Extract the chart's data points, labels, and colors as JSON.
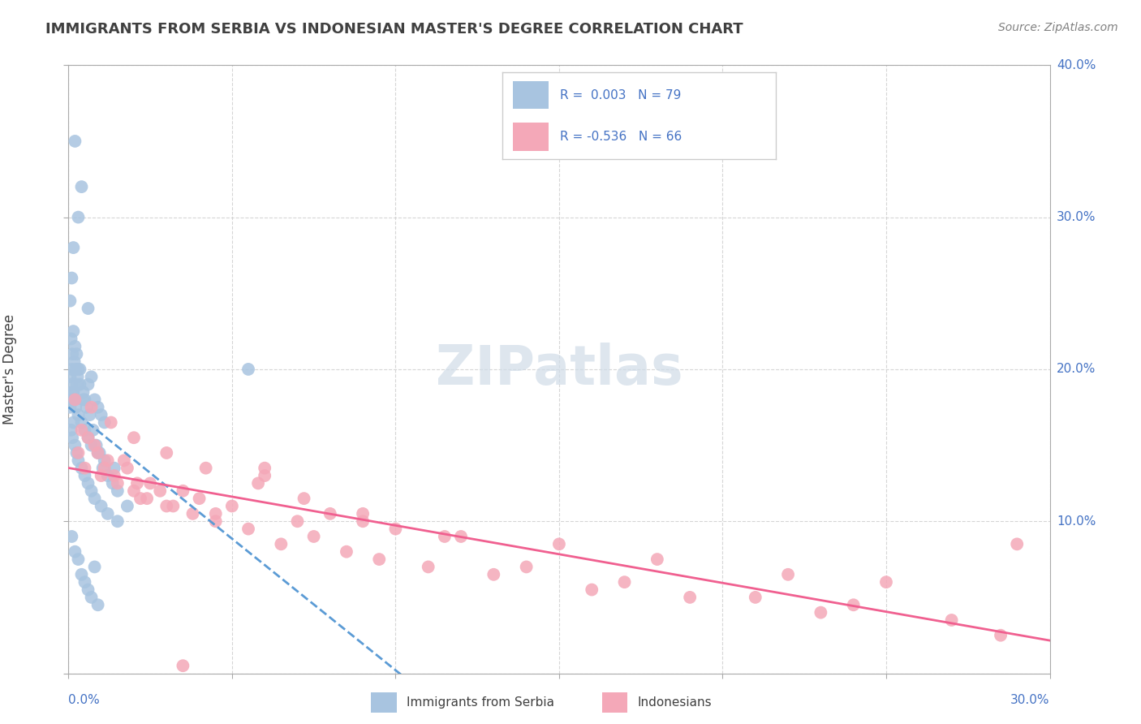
{
  "title": "IMMIGRANTS FROM SERBIA VS INDONESIAN MASTER'S DEGREE CORRELATION CHART",
  "source_text": "Source: ZipAtlas.com",
  "ylabel_label": "Master's Degree",
  "xlim": [
    0.0,
    30.0
  ],
  "ylim": [
    0.0,
    40.0
  ],
  "serbia_R": 0.003,
  "serbia_N": 79,
  "indonesia_R": -0.536,
  "indonesia_N": 66,
  "serbia_color": "#a8c4e0",
  "indonesia_color": "#f4a8b8",
  "serbia_line_color": "#5b9bd5",
  "indonesia_line_color": "#f06090",
  "background_color": "#ffffff",
  "grid_color": "#cccccc",
  "title_color": "#404040",
  "legend_text_color": "#4472c4",
  "watermark_color": "#d0dce8",
  "serbia_scatter_x": [
    0.2,
    0.4,
    0.15,
    0.3,
    0.1,
    0.05,
    0.08,
    0.12,
    0.18,
    0.22,
    0.28,
    0.35,
    0.45,
    0.5,
    0.6,
    0.7,
    0.8,
    0.9,
    1.0,
    1.1,
    0.6,
    0.3,
    0.25,
    0.15,
    0.1,
    0.05,
    0.08,
    0.12,
    0.15,
    0.2,
    0.25,
    0.3,
    0.4,
    0.5,
    0.6,
    0.7,
    0.8,
    1.0,
    1.2,
    1.5,
    0.2,
    0.1,
    0.05,
    0.08,
    0.12,
    0.18,
    0.22,
    0.3,
    0.4,
    0.5,
    0.6,
    0.7,
    0.9,
    1.1,
    1.4,
    0.15,
    0.25,
    0.35,
    0.45,
    0.55,
    0.65,
    0.75,
    0.85,
    0.95,
    1.05,
    1.2,
    1.35,
    1.5,
    1.8,
    0.2,
    0.3,
    0.1,
    0.4,
    0.5,
    0.6,
    0.7,
    0.8,
    0.9,
    5.5
  ],
  "serbia_scatter_y": [
    35.0,
    32.0,
    28.0,
    30.0,
    26.0,
    24.5,
    22.0,
    21.0,
    20.5,
    20.0,
    19.5,
    19.0,
    18.5,
    18.0,
    19.0,
    19.5,
    18.0,
    17.5,
    17.0,
    16.5,
    24.0,
    20.0,
    19.0,
    18.5,
    18.0,
    17.5,
    16.0,
    15.5,
    16.5,
    15.0,
    14.5,
    14.0,
    13.5,
    13.0,
    12.5,
    12.0,
    11.5,
    11.0,
    10.5,
    10.0,
    21.5,
    20.0,
    19.5,
    19.0,
    18.5,
    18.0,
    17.5,
    17.0,
    16.5,
    16.0,
    15.5,
    15.0,
    14.5,
    14.0,
    13.5,
    22.5,
    21.0,
    20.0,
    18.0,
    17.5,
    17.0,
    16.0,
    15.0,
    14.5,
    13.5,
    13.0,
    12.5,
    12.0,
    11.0,
    8.0,
    7.5,
    9.0,
    6.5,
    6.0,
    5.5,
    5.0,
    7.0,
    4.5,
    20.0
  ],
  "indonesia_scatter_x": [
    0.3,
    0.5,
    0.8,
    1.0,
    1.2,
    1.5,
    1.8,
    2.0,
    2.2,
    2.5,
    3.0,
    3.5,
    4.0,
    4.5,
    5.0,
    6.0,
    7.0,
    8.0,
    9.0,
    10.0,
    12.0,
    15.0,
    18.0,
    22.0,
    25.0,
    0.4,
    0.6,
    0.9,
    1.1,
    1.4,
    1.7,
    2.1,
    2.4,
    2.8,
    3.2,
    3.8,
    4.5,
    5.5,
    6.5,
    7.5,
    8.5,
    9.5,
    11.0,
    13.0,
    16.0,
    19.0,
    23.0,
    27.0,
    29.0,
    0.2,
    0.7,
    1.3,
    2.0,
    3.0,
    4.2,
    5.8,
    7.2,
    9.0,
    11.5,
    14.0,
    17.0,
    21.0,
    24.0,
    28.5,
    3.5,
    6.0
  ],
  "indonesia_scatter_y": [
    14.5,
    13.5,
    15.0,
    13.0,
    14.0,
    12.5,
    13.5,
    12.0,
    11.5,
    12.5,
    11.0,
    12.0,
    11.5,
    10.5,
    11.0,
    13.0,
    10.0,
    10.5,
    10.0,
    9.5,
    9.0,
    8.5,
    7.5,
    6.5,
    6.0,
    16.0,
    15.5,
    14.5,
    13.5,
    13.0,
    14.0,
    12.5,
    11.5,
    12.0,
    11.0,
    10.5,
    10.0,
    9.5,
    8.5,
    9.0,
    8.0,
    7.5,
    7.0,
    6.5,
    5.5,
    5.0,
    4.0,
    3.5,
    8.5,
    18.0,
    17.5,
    16.5,
    15.5,
    14.5,
    13.5,
    12.5,
    11.5,
    10.5,
    9.0,
    7.0,
    6.0,
    5.0,
    4.5,
    2.5,
    0.5,
    13.5
  ]
}
